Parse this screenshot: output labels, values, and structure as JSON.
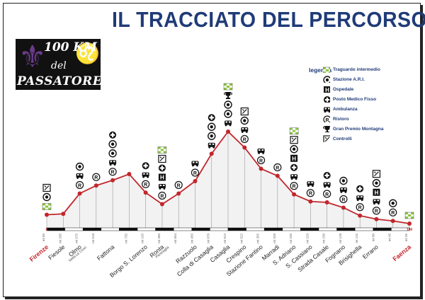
{
  "title": "IL TRACCIATO DEL PERCORSO",
  "logo": {
    "line1": "100 KM",
    "line2": "del",
    "line3": "PASSATORE"
  },
  "legend": {
    "title": "legenda",
    "items": [
      {
        "icon": "checkered-flag-icon",
        "label": "Traguardo intermedio"
      },
      {
        "icon": "ari-station-icon",
        "label": "Stazione A.R.I."
      },
      {
        "icon": "hospital-icon",
        "label": "Ospedale"
      },
      {
        "icon": "medical-cross-icon",
        "label": "Posto Medico Fisso"
      },
      {
        "icon": "ambulance-icon",
        "label": "Ambulanza"
      },
      {
        "icon": "refreshment-icon",
        "label": "Ristoro"
      },
      {
        "icon": "trophy-icon",
        "label": "Gran Premio Montagna"
      },
      {
        "icon": "checkpoint-icon",
        "label": "Controlli"
      }
    ]
  },
  "colors": {
    "title": "#1f3b78",
    "profile": "#c1272d",
    "highlight_label": "#c1272d",
    "label": "#222222",
    "legend_green": "#8cc63f"
  },
  "chart_data": {
    "type": "line",
    "title": "",
    "xlabel": "",
    "ylabel": "",
    "points": [
      {
        "name": "Firenze",
        "altitude": 1,
        "alt_label": "mt 60",
        "km_label": "0",
        "highlight": true,
        "icons": [
          "checkered-flag-icon",
          "ari-station-icon",
          "checkpoint-icon"
        ]
      },
      {
        "name": "Fiesole",
        "altitude": 1.1,
        "alt_label": "mt 295",
        "km_label": "",
        "highlight": false,
        "icons": []
      },
      {
        "name": "Olmo",
        "sub": "Vetta Le Croci",
        "altitude": 3.4,
        "alt_label": "mt 575",
        "km_label": "",
        "highlight": false,
        "icons": [
          "refreshment-icon",
          "ambulance-icon",
          "ari-station-icon"
        ]
      },
      {
        "name": "",
        "altitude": 4.3,
        "alt_label": "mt 518",
        "km_label": "",
        "highlight": false,
        "icons": [
          "refreshment-icon"
        ]
      },
      {
        "name": "Fattona",
        "altitude": 4.9,
        "alt_label": "",
        "km_label": "",
        "highlight": false,
        "icons": [
          "refreshment-icon",
          "ambulance-icon",
          "ari-station-icon",
          "ari-station-icon",
          "medical-cross-icon"
        ]
      },
      {
        "name": "",
        "altitude": 5.6,
        "alt_label": "mt 735",
        "km_label": "",
        "highlight": false,
        "icons": []
      },
      {
        "name": "Borgo S. Lorenzo",
        "altitude": 3.5,
        "alt_label": "mt 193",
        "km_label": "",
        "highlight": false,
        "icons": [
          "refreshment-icon",
          "ambulance-icon",
          "medical-cross-icon"
        ]
      },
      {
        "name": "Ronta",
        "sub": "Panicaglia",
        "altitude": 2.2,
        "alt_label": "mt 360",
        "km_label": "",
        "highlight": false,
        "icons": [
          "refreshment-icon",
          "ambulance-icon",
          "hospital-icon",
          "medical-cross-icon",
          "checkpoint-icon",
          "checkered-flag-icon"
        ]
      },
      {
        "name": "",
        "altitude": 3.4,
        "alt_label": "mt 504",
        "km_label": "",
        "highlight": false,
        "icons": [
          "refreshment-icon"
        ]
      },
      {
        "name": "Razzuolo",
        "altitude": 4.8,
        "alt_label": "mt 455",
        "km_label": "",
        "highlight": false,
        "icons": [
          "refreshment-icon",
          "ambulance-icon"
        ]
      },
      {
        "name": "Colla di Casaglia",
        "altitude": 7.9,
        "alt_label": "mt 670",
        "km_label": "",
        "highlight": false,
        "icons": [
          "ambulance-icon",
          "ari-station-icon",
          "ari-station-icon",
          "medical-cross-icon"
        ]
      },
      {
        "name": "Casaglia",
        "altitude": 10.4,
        "alt_label": "mt 913",
        "km_label": "",
        "highlight": false,
        "icons": [
          "ambulance-icon",
          "ari-station-icon",
          "ari-station-icon",
          "trophy-icon",
          "checkered-flag-icon"
        ]
      },
      {
        "name": "Crespino",
        "altitude": 8.6,
        "alt_label": "mt 522",
        "km_label": "",
        "highlight": false,
        "icons": [
          "refreshment-icon",
          "ambulance-icon",
          "ari-station-icon",
          "checkpoint-icon"
        ]
      },
      {
        "name": "Stazione Fantino",
        "altitude": 6.2,
        "alt_label": "mt 355",
        "km_label": "",
        "highlight": false,
        "icons": [
          "refreshment-icon",
          "ambulance-icon"
        ]
      },
      {
        "name": "Marradi",
        "altitude": 5.4,
        "alt_label": "mt 328",
        "km_label": "",
        "highlight": false,
        "icons": [
          "refreshment-icon"
        ]
      },
      {
        "name": "S. Adriano",
        "altitude": 3.3,
        "alt_label": "mt 240",
        "km_label": "",
        "highlight": false,
        "icons": [
          "refreshment-icon",
          "ambulance-icon",
          "medical-cross-icon",
          "hospital-icon",
          "ari-station-icon",
          "checkpoint-icon",
          "checkered-flag-icon"
        ]
      },
      {
        "name": "S. Cassiano",
        "altitude": 2.5,
        "alt_label": "mt 229",
        "km_label": "",
        "highlight": false,
        "icons": [
          "refreshment-icon",
          "ambulance-icon"
        ]
      },
      {
        "name": "Strada Casale",
        "altitude": 2.4,
        "alt_label": "mt 230",
        "km_label": "",
        "highlight": false,
        "icons": [
          "refreshment-icon",
          "ambulance-icon",
          "medical-cross-icon"
        ]
      },
      {
        "name": "Fognano",
        "altitude": 1.8,
        "alt_label": "mt 128",
        "km_label": "",
        "highlight": false,
        "icons": [
          "refreshment-icon",
          "ambulance-icon",
          "ari-station-icon"
        ]
      },
      {
        "name": "Brisighella",
        "altitude": 0.9,
        "alt_label": "mt 115",
        "km_label": "",
        "highlight": false,
        "icons": [
          "refreshment-icon",
          "ambulance-icon",
          "medical-cross-icon"
        ]
      },
      {
        "name": "Errano",
        "altitude": 0.5,
        "alt_label": "mt 80",
        "km_label": "",
        "highlight": false,
        "icons": [
          "refreshment-icon",
          "ambulance-icon",
          "hospital-icon",
          "ari-station-icon",
          "checkpoint-icon"
        ]
      },
      {
        "name": "",
        "altitude": 0.3,
        "alt_label": "mt 45",
        "km_label": "",
        "highlight": false,
        "icons": [
          "refreshment-icon",
          "ari-station-icon"
        ]
      },
      {
        "name": "Faenza",
        "altitude": 0,
        "alt_label": "mt 35",
        "km_label": "100",
        "highlight": true,
        "icons": [
          "checkered-flag-icon"
        ]
      }
    ]
  }
}
